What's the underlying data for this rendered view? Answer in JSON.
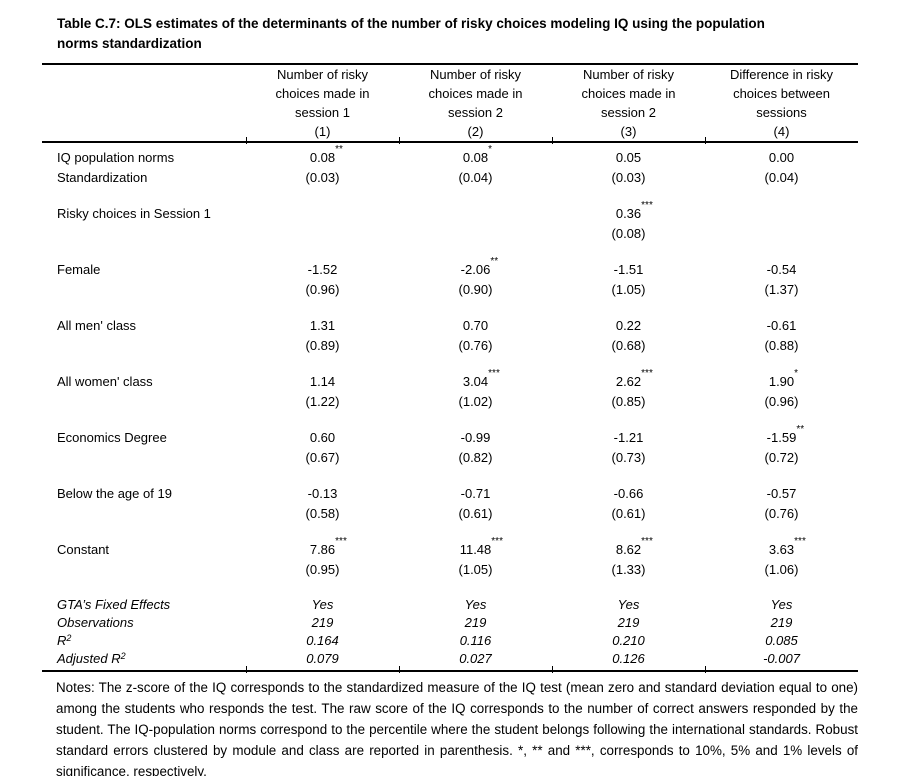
{
  "title": {
    "line1": "Table C.7: OLS estimates of the determinants of the number of risky choices modeling IQ using the population",
    "line2": "norms standardization"
  },
  "columns": [
    {
      "line1": "Number of risky",
      "line2": "choices made in",
      "line3": "session 1",
      "num": "(1)"
    },
    {
      "line1": "Number of risky",
      "line2": "choices made in",
      "line3": "session 2",
      "num": "(2)"
    },
    {
      "line1": "Number of risky",
      "line2": "choices made in",
      "line3": "session 2",
      "num": "(3)"
    },
    {
      "line1": "Difference in risky",
      "line2": "choices between",
      "line3": "sessions",
      "num": "(4)"
    }
  ],
  "rows": [
    {
      "label": "IQ population norms",
      "label2": "Standardization",
      "cells": [
        {
          "coef": "0.08",
          "stars": "**",
          "se": "(0.03)"
        },
        {
          "coef": "0.08",
          "stars": "*",
          "se": "(0.04)"
        },
        {
          "coef": "0.05",
          "stars": "",
          "se": "(0.03)"
        },
        {
          "coef": "0.00",
          "stars": "",
          "se": "(0.04)"
        }
      ]
    },
    {
      "label": "Risky choices in Session 1",
      "label2": "",
      "cells": [
        {
          "coef": "",
          "stars": "",
          "se": ""
        },
        {
          "coef": "",
          "stars": "",
          "se": ""
        },
        {
          "coef": "0.36",
          "stars": "***",
          "se": "(0.08)"
        },
        {
          "coef": "",
          "stars": "",
          "se": ""
        }
      ]
    },
    {
      "label": "Female",
      "label2": "",
      "cells": [
        {
          "coef": "-1.52",
          "stars": "",
          "se": "(0.96)"
        },
        {
          "coef": "-2.06",
          "stars": "**",
          "se": "(0.90)"
        },
        {
          "coef": "-1.51",
          "stars": "",
          "se": "(1.05)"
        },
        {
          "coef": "-0.54",
          "stars": "",
          "se": "(1.37)"
        }
      ]
    },
    {
      "label": "All men' class",
      "label2": "",
      "cells": [
        {
          "coef": "1.31",
          "stars": "",
          "se": "(0.89)"
        },
        {
          "coef": "0.70",
          "stars": "",
          "se": "(0.76)"
        },
        {
          "coef": "0.22",
          "stars": "",
          "se": "(0.68)"
        },
        {
          "coef": "-0.61",
          "stars": "",
          "se": "(0.88)"
        }
      ]
    },
    {
      "label": "All women' class",
      "label2": "",
      "cells": [
        {
          "coef": "1.14",
          "stars": "",
          "se": "(1.22)"
        },
        {
          "coef": "3.04",
          "stars": "***",
          "se": "(1.02)"
        },
        {
          "coef": "2.62",
          "stars": "***",
          "se": "(0.85)"
        },
        {
          "coef": "1.90",
          "stars": "*",
          "se": "(0.96)"
        }
      ]
    },
    {
      "label": "Economics Degree",
      "label2": "",
      "cells": [
        {
          "coef": "0.60",
          "stars": "",
          "se": "(0.67)"
        },
        {
          "coef": "-0.99",
          "stars": "",
          "se": "(0.82)"
        },
        {
          "coef": "-1.21",
          "stars": "",
          "se": "(0.73)"
        },
        {
          "coef": "-1.59",
          "stars": "**",
          "se": "(0.72)"
        }
      ]
    },
    {
      "label": "Below the age of 19",
      "label2": "",
      "cells": [
        {
          "coef": "-0.13",
          "stars": "",
          "se": "(0.58)"
        },
        {
          "coef": "-0.71",
          "stars": "",
          "se": "(0.61)"
        },
        {
          "coef": "-0.66",
          "stars": "",
          "se": "(0.61)"
        },
        {
          "coef": "-0.57",
          "stars": "",
          "se": "(0.76)"
        }
      ]
    },
    {
      "label": "Constant",
      "label2": "",
      "cells": [
        {
          "coef": "7.86",
          "stars": "***",
          "se": "(0.95)"
        },
        {
          "coef": "11.48",
          "stars": "***",
          "se": "(1.05)"
        },
        {
          "coef": "8.62",
          "stars": "***",
          "se": "(1.33)"
        },
        {
          "coef": "3.63",
          "stars": "***",
          "se": "(1.06)"
        }
      ]
    }
  ],
  "stats": [
    {
      "label": "GTA’s Fixed Effects",
      "sup": "",
      "values": [
        "Yes",
        "Yes",
        "Yes",
        "Yes"
      ]
    },
    {
      "label": "Observations",
      "sup": "",
      "values": [
        "219",
        "219",
        "219",
        "219"
      ]
    },
    {
      "label": "R",
      "sup": "2",
      "values": [
        "0.164",
        "0.116",
        "0.210",
        "0.085"
      ]
    },
    {
      "label": "Adjusted R",
      "sup": "2",
      "values": [
        "0.079",
        "0.027",
        "0.126",
        "-0.007"
      ]
    }
  ],
  "notes": "Notes: The z-score of the IQ corresponds to the standardized measure of the IQ test (mean zero and standard deviation equal to one) among the students who responds the test. The raw score of the IQ corresponds to the number of correct answers responded by the student. The IQ-population norms correspond to the percentile where the student belongs following the international standards. Robust standard errors clustered by module and class are reported in parenthesis. *, ** and ***, corresponds to 10%, 5% and 1% levels of significance, respectively."
}
